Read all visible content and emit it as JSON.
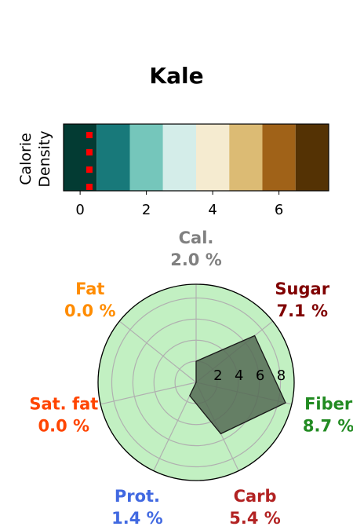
{
  "title": "Kale",
  "colors": {
    "palette": [
      "#033b33",
      "#18797a",
      "#75c6bb",
      "#d4ede9",
      "#f5ebd0",
      "#dcbb74",
      "#a06218",
      "#543204"
    ],
    "marker": "#ff0000",
    "radar_bg": "#c2f0c2",
    "radar_fill": "#556b55",
    "labels": {
      "Cal.": "#808080",
      "Sugar": "#800000",
      "Fiber": "#228b22",
      "Carb": "#b22222",
      "Prot.": "#4169e1",
      "Sat. fat": "#ff4500",
      "Fat": "#ff8c00"
    }
  },
  "chart_data": [
    {
      "type": "heatmap",
      "ylabel": "Calorie\nDensity",
      "categories": [
        0,
        1,
        2,
        3,
        4,
        5,
        6,
        7
      ],
      "x_ticks": [
        "0",
        "2",
        "4",
        "6"
      ],
      "xlim": [
        -0.5,
        7.5
      ],
      "marker_x": 0.28,
      "marker_count": 4
    },
    {
      "type": "radar",
      "axes": [
        "Cal.",
        "Sugar",
        "Fiber",
        "Carb",
        "Prot.",
        "Sat. fat",
        "Fat"
      ],
      "values": [
        2.0,
        7.1,
        8.7,
        5.4,
        1.4,
        0.0,
        0.0
      ],
      "value_labels": [
        "2.0 %",
        "7.1 %",
        "8.7 %",
        "5.4 %",
        "1.4 %",
        "0.0 %",
        "0.0 %"
      ],
      "r_ticks": [
        "2",
        "4",
        "6",
        "8"
      ],
      "rlim": [
        0,
        9.3
      ],
      "grid": true
    }
  ]
}
